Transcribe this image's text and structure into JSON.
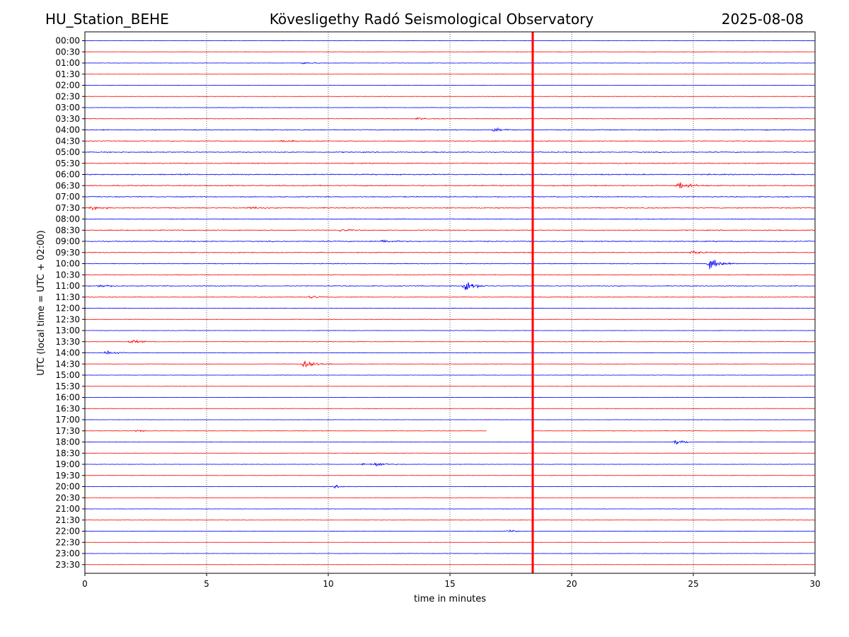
{
  "header": {
    "station": "HU_Station_BEHE",
    "observatory": "Kövesligethy Radó Seismological Observatory",
    "date": "2025-08-08"
  },
  "chart_data": {
    "type": "line",
    "title": "Kövesligethy Radó Seismological Observatory",
    "xlabel": "time in minutes",
    "ylabel": "UTC (local time = UTC + 02:00)",
    "xlim": [
      0,
      30
    ],
    "xticks": [
      "0",
      "5",
      "10",
      "15",
      "20",
      "25",
      "30"
    ],
    "x_gridlines_dotted": [
      5,
      10,
      15,
      20,
      25
    ],
    "row_labels": [
      "00:00",
      "00:30",
      "01:00",
      "01:30",
      "02:00",
      "02:30",
      "03:00",
      "03:30",
      "04:00",
      "04:30",
      "05:00",
      "05:30",
      "06:00",
      "06:30",
      "07:00",
      "07:30",
      "08:00",
      "08:30",
      "09:00",
      "09:30",
      "10:00",
      "10:30",
      "11:00",
      "11:30",
      "12:00",
      "12:30",
      "13:00",
      "13:30",
      "14:00",
      "14:30",
      "15:00",
      "15:30",
      "16:00",
      "16:30",
      "17:00",
      "17:30",
      "18:00",
      "18:30",
      "19:00",
      "19:30",
      "20:00",
      "20:30",
      "21:00",
      "21:30",
      "22:00",
      "22:30",
      "23:00",
      "23:30"
    ],
    "row_colors": [
      "#0000ff",
      "#ff0000"
    ],
    "current_time_marker": {
      "minute": 18.4,
      "color": "#ff0000",
      "row": "17:30"
    },
    "gap_in_row": {
      "row": "17:30",
      "from_minute": 16.5,
      "to_minute": 18.4
    },
    "row_noise_levels": [
      0.25,
      0.25,
      0.25,
      0.2,
      0.25,
      0.25,
      0.3,
      0.35,
      0.6,
      0.5,
      0.6,
      0.6,
      0.7,
      0.65,
      0.6,
      0.6,
      0.5,
      0.55,
      0.6,
      0.55,
      0.5,
      0.45,
      0.5,
      0.45,
      0.35,
      0.35,
      0.3,
      0.35,
      0.3,
      0.3,
      0.25,
      0.25,
      0.25,
      0.25,
      0.25,
      0.3,
      0.3,
      0.25,
      0.25,
      0.25,
      0.25,
      0.25,
      0.25,
      0.25,
      0.25,
      0.2,
      0.25,
      0.2
    ],
    "events": [
      {
        "row": "01:00",
        "minute": 9.0,
        "amp": 0.6
      },
      {
        "row": "03:30",
        "minute": 13.7,
        "amp": 0.6
      },
      {
        "row": "04:00",
        "minute": 16.8,
        "amp": 1.0
      },
      {
        "row": "04:30",
        "minute": 8.1,
        "amp": 0.8
      },
      {
        "row": "06:30",
        "minute": 24.4,
        "amp": 2.5
      },
      {
        "row": "07:30",
        "minute": 0.3,
        "amp": 1.0
      },
      {
        "row": "07:30",
        "minute": 6.8,
        "amp": 0.8
      },
      {
        "row": "08:30",
        "minute": 10.5,
        "amp": 0.9
      },
      {
        "row": "09:00",
        "minute": 12.2,
        "amp": 1.3
      },
      {
        "row": "09:30",
        "minute": 24.9,
        "amp": 1.3
      },
      {
        "row": "10:00",
        "minute": 25.7,
        "amp": 4.0
      },
      {
        "row": "11:00",
        "minute": 15.6,
        "amp": 4.0
      },
      {
        "row": "11:00",
        "minute": 0.6,
        "amp": 1.0
      },
      {
        "row": "11:30",
        "minute": 9.3,
        "amp": 0.8
      },
      {
        "row": "13:30",
        "minute": 1.9,
        "amp": 1.2
      },
      {
        "row": "14:00",
        "minute": 0.9,
        "amp": 1.4
      },
      {
        "row": "14:30",
        "minute": 9.0,
        "amp": 4.0
      },
      {
        "row": "17:30",
        "minute": 2.1,
        "amp": 0.6
      },
      {
        "row": "18:00",
        "minute": 24.3,
        "amp": 1.6
      },
      {
        "row": "19:00",
        "minute": 12.0,
        "amp": 1.3
      },
      {
        "row": "19:00",
        "minute": 11.4,
        "amp": 0.8
      },
      {
        "row": "20:00",
        "minute": 10.3,
        "amp": 0.8
      },
      {
        "row": "22:00",
        "minute": 17.4,
        "amp": 0.7
      }
    ],
    "grid": "vertical dotted"
  }
}
